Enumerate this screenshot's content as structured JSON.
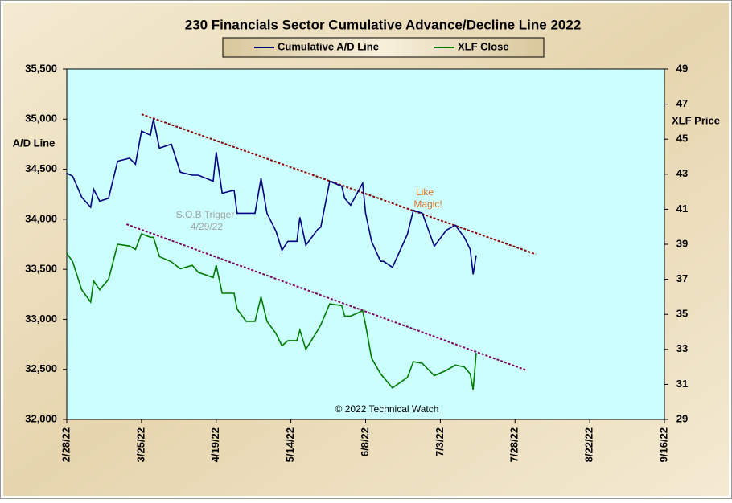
{
  "chart_data": {
    "type": "line",
    "title": "230 Financials  Sector Cumulative  Advance/Decline  Line 2022",
    "y_label": "A/D Line",
    "y2_label": "XLF Price",
    "legend": "top",
    "x": [
      "2022-02-28",
      "2022-03-02",
      "2022-03-05",
      "2022-03-08",
      "2022-03-09",
      "2022-03-11",
      "2022-03-14",
      "2022-03-17",
      "2022-03-21",
      "2022-03-23",
      "2022-03-25",
      "2022-03-28",
      "2022-03-29",
      "2022-03-31",
      "2022-04-04",
      "2022-04-07",
      "2022-04-11",
      "2022-04-13",
      "2022-04-18",
      "2022-04-19",
      "2022-04-21",
      "2022-04-25",
      "2022-04-26",
      "2022-04-29",
      "2022-05-02",
      "2022-05-04",
      "2022-05-06",
      "2022-05-09",
      "2022-05-11",
      "2022-05-13",
      "2022-05-16",
      "2022-05-17",
      "2022-05-19",
      "2022-05-23",
      "2022-05-24",
      "2022-05-27",
      "2022-05-31",
      "2022-06-01",
      "2022-06-03",
      "2022-06-07",
      "2022-06-08",
      "2022-06-10",
      "2022-06-13",
      "2022-06-14",
      "2022-06-17",
      "2022-06-22",
      "2022-06-24",
      "2022-06-27",
      "2022-07-01",
      "2022-07-05",
      "2022-07-08",
      "2022-07-11",
      "2022-07-13",
      "2022-07-14",
      "2022-07-15"
    ],
    "series": [
      {
        "name": "Cumulative A/D Line",
        "color": "#000080",
        "axis": "y",
        "values": [
          34460,
          34430,
          34220,
          34120,
          34300,
          34180,
          34210,
          34580,
          34610,
          34550,
          34880,
          34840,
          35000,
          34710,
          34750,
          34470,
          34440,
          34440,
          34380,
          34670,
          34260,
          34290,
          34060,
          34060,
          34060,
          34410,
          34060,
          33880,
          33690,
          33780,
          33780,
          34020,
          33740,
          33900,
          33920,
          34380,
          34330,
          34210,
          34140,
          34360,
          34060,
          33780,
          33580,
          33580,
          33520,
          33850,
          34090,
          34060,
          33730,
          33890,
          33940,
          33820,
          33700,
          33450,
          33640
        ]
      },
      {
        "name": "XLF Close",
        "color": "#007a00",
        "axis": "y2",
        "values": [
          38.5,
          38.0,
          36.4,
          35.7,
          36.9,
          36.4,
          37.0,
          39.0,
          38.9,
          38.7,
          39.6,
          39.4,
          39.4,
          38.3,
          38.0,
          37.6,
          37.8,
          37.4,
          37.1,
          37.8,
          36.2,
          36.2,
          35.3,
          34.6,
          34.6,
          36.0,
          34.6,
          33.9,
          33.2,
          33.5,
          33.5,
          34.1,
          33.0,
          34.1,
          34.4,
          35.6,
          35.5,
          34.9,
          34.9,
          35.2,
          34.4,
          32.5,
          31.6,
          31.4,
          30.8,
          31.4,
          32.3,
          32.2,
          31.5,
          31.8,
          32.1,
          32.0,
          31.6,
          30.7,
          32.8
        ]
      }
    ],
    "trendlines": [
      {
        "color": "#8b0000",
        "axis": "y",
        "start": [
          "2022-03-25",
          35050
        ],
        "end": [
          "2022-08-04",
          33650
        ]
      },
      {
        "color": "#800060",
        "axis": "y",
        "start": [
          "2022-03-20",
          33950
        ],
        "end": [
          "2022-08-01",
          32490
        ]
      }
    ],
    "annotations": [
      {
        "text": "S.O.B  Trigger",
        "color": "#a0a0a0"
      },
      {
        "text": "4/29/22",
        "color": "#a0a0a0"
      },
      {
        "text": "Like",
        "color": "#e07020"
      },
      {
        "text": "Magic!",
        "color": "#e07020"
      },
      {
        "text": "© 2022 Technical Watch",
        "color": "#000000"
      }
    ],
    "xlim": [
      "2022-02-28",
      "2022-09-16"
    ],
    "xticks": [
      {
        "value": "2022-02-28",
        "label": "2/28/22"
      },
      {
        "value": "2022-03-25",
        "label": "3/25/22"
      },
      {
        "value": "2022-04-19",
        "label": "4/19/22"
      },
      {
        "value": "2022-05-14",
        "label": "5/14/22"
      },
      {
        "value": "2022-06-08",
        "label": "6/8/22"
      },
      {
        "value": "2022-07-03",
        "label": "7/3/22"
      },
      {
        "value": "2022-07-28",
        "label": "7/28/22"
      },
      {
        "value": "2022-08-22",
        "label": "8/22/22"
      },
      {
        "value": "2022-09-16",
        "label": "9/16/22"
      }
    ],
    "ylim": [
      32000,
      35500
    ],
    "yticks": [
      {
        "value": 32000,
        "label": "32,000"
      },
      {
        "value": 32500,
        "label": "32,500"
      },
      {
        "value": 33000,
        "label": "33,000"
      },
      {
        "value": 33500,
        "label": "33,500"
      },
      {
        "value": 34000,
        "label": "34,000"
      },
      {
        "value": 34500,
        "label": "34,500"
      },
      {
        "value": 35000,
        "label": "35,000"
      },
      {
        "value": 35500,
        "label": "35,500"
      }
    ],
    "y2lim": [
      29,
      49
    ],
    "y2ticks": [
      29,
      31,
      33,
      35,
      37,
      39,
      41,
      43,
      45,
      47,
      49
    ],
    "plot_background": "#ccffff"
  }
}
